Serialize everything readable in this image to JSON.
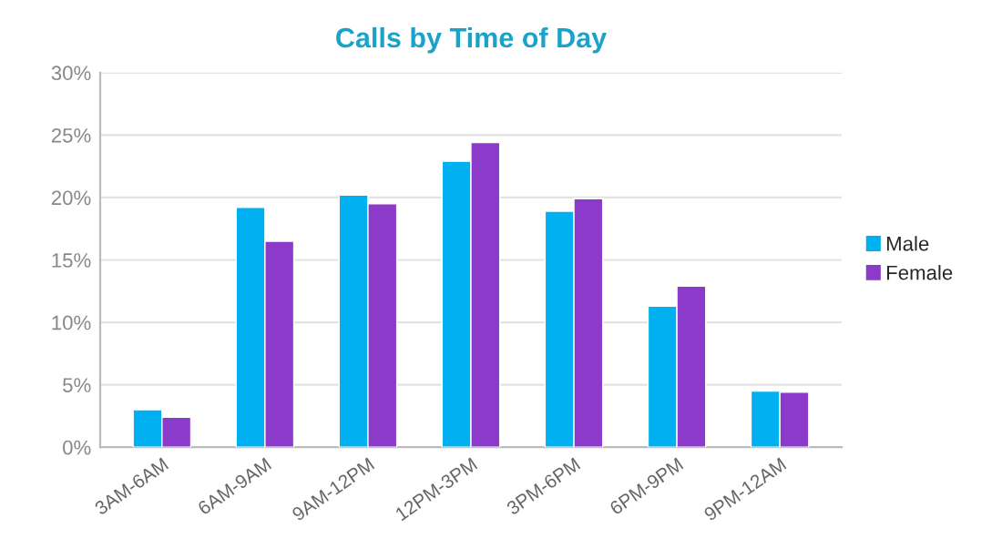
{
  "chart_data": {
    "type": "bar",
    "title": "Calls by Time of Day",
    "categories": [
      "3AM-6AM",
      "6AM-9AM",
      "9AM-12PM",
      "12PM-3PM",
      "3PM-6PM",
      "6PM-9PM",
      "9PM-12AM"
    ],
    "series": [
      {
        "name": "Male",
        "color": "#00b0f0",
        "values": [
          3.0,
          19.2,
          20.2,
          22.9,
          18.9,
          11.3,
          4.5
        ]
      },
      {
        "name": "Female",
        "color": "#8b3ac9",
        "values": [
          2.4,
          16.5,
          19.5,
          24.4,
          19.9,
          12.9,
          4.4
        ]
      }
    ],
    "ylim": [
      0,
      30
    ],
    "yticks": [
      {
        "value": 0,
        "label": "0%"
      },
      {
        "value": 5,
        "label": "5%"
      },
      {
        "value": 10,
        "label": "10%"
      },
      {
        "value": 15,
        "label": "15%"
      },
      {
        "value": 20,
        "label": "20%"
      },
      {
        "value": 25,
        "label": "25%"
      },
      {
        "value": 30,
        "label": "30%"
      }
    ],
    "grid": "y",
    "legend": "right"
  }
}
